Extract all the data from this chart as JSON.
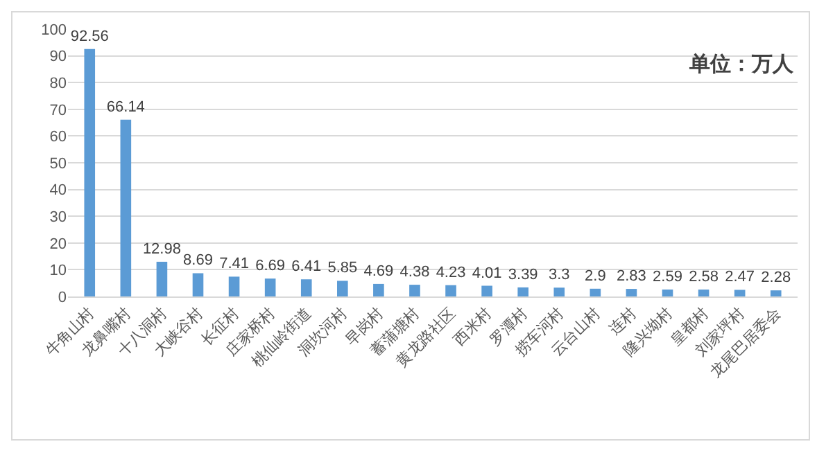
{
  "chart_data": {
    "type": "bar",
    "categories": [
      "牛角山村",
      "龙鼻嘴村",
      "十八洞村",
      "大峡谷村",
      "长征村",
      "庄家桥村",
      "桃仙岭街道",
      "洞坎河村",
      "早岗村",
      "蓄蒲塘村",
      "黄龙路社区",
      "西米村",
      "罗潭村",
      "捞车河村",
      "云台山村",
      "连村",
      "隆兴坳村",
      "皇都村",
      "刘家坪村",
      "龙尾巴居委会"
    ],
    "values": [
      92.56,
      66.14,
      12.98,
      8.69,
      7.41,
      6.69,
      6.41,
      5.85,
      4.69,
      4.38,
      4.23,
      4.01,
      3.39,
      3.3,
      2.9,
      2.83,
      2.59,
      2.58,
      2.47,
      2.28
    ],
    "color": "#5b9bd5",
    "ylim": [
      0,
      100
    ],
    "yticks": [
      0,
      10,
      20,
      30,
      40,
      50,
      60,
      70,
      80,
      90,
      100
    ],
    "grid": "y",
    "data_labels": true,
    "annotations": [
      "单位：万人"
    ]
  }
}
